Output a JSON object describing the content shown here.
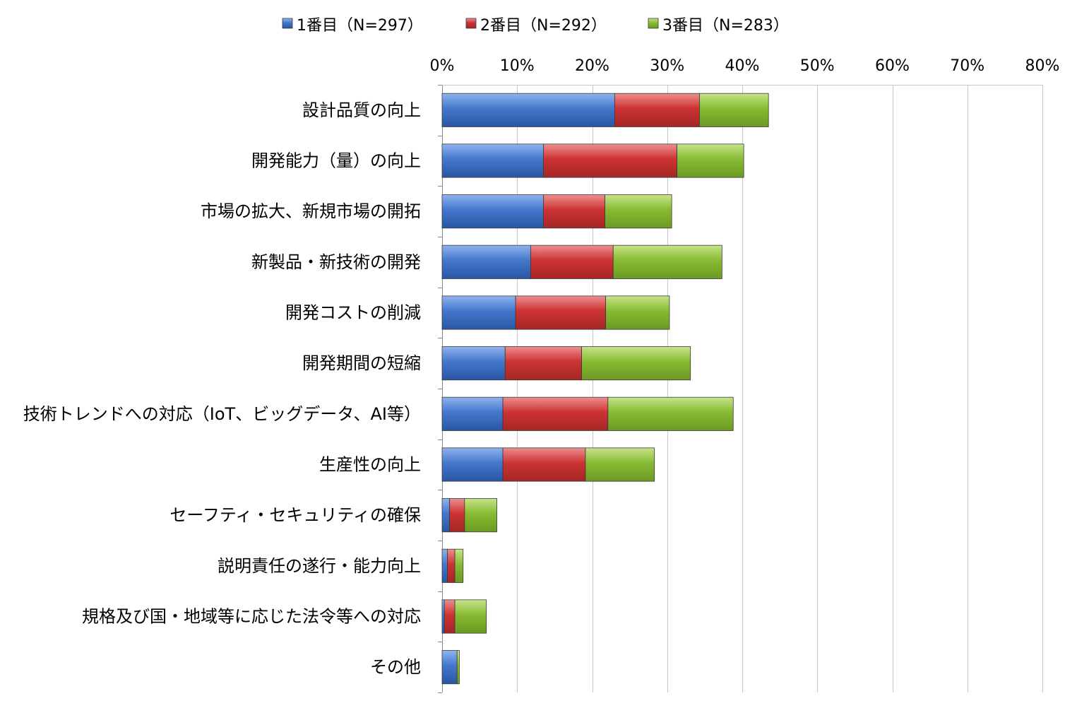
{
  "chart_data": {
    "type": "bar",
    "orientation": "horizontal",
    "stacked": true,
    "categories": [
      "設計品質の向上",
      "開発能力（量）の向上",
      "市場の拡大、新規市場の開拓",
      "新製品・新技術の開発",
      "開発コストの削減",
      "開発期間の短縮",
      "技術トレンドへの対応（IoT、ビッグデータ、AI等）",
      "生産性の向上",
      "セーフティ・セキュリティの確保",
      "説明責任の遂行・能力向上",
      "規格及び国・地域等に応じた法令等への対応",
      "その他"
    ],
    "series": [
      {
        "name": "1番目（N=297）",
        "color": "#4477cc",
        "values": [
          23.0,
          13.5,
          13.5,
          11.8,
          9.8,
          8.4,
          8.1,
          8.1,
          1.0,
          0.7,
          0.3,
          2.0
        ]
      },
      {
        "name": "2番目（N=292）",
        "color": "#cc3333",
        "values": [
          11.3,
          17.8,
          8.2,
          11.0,
          12.0,
          10.2,
          14.0,
          11.0,
          2.0,
          1.0,
          1.4,
          0.0
        ]
      },
      {
        "name": "3番目（N=283）",
        "color": "#88bb33",
        "values": [
          9.2,
          8.9,
          8.9,
          14.5,
          8.5,
          14.5,
          16.7,
          9.2,
          4.3,
          1.1,
          4.2,
          0.3
        ]
      }
    ],
    "xlim": [
      0,
      80
    ],
    "x_ticks": [
      "0%",
      "10%",
      "20%",
      "30%",
      "40%",
      "50%",
      "60%",
      "70%",
      "80%"
    ],
    "x_tick_values": [
      0,
      10,
      20,
      30,
      40,
      50,
      60,
      70,
      80
    ],
    "x_axis_position": "top",
    "grid": true,
    "legend_position": "top"
  }
}
